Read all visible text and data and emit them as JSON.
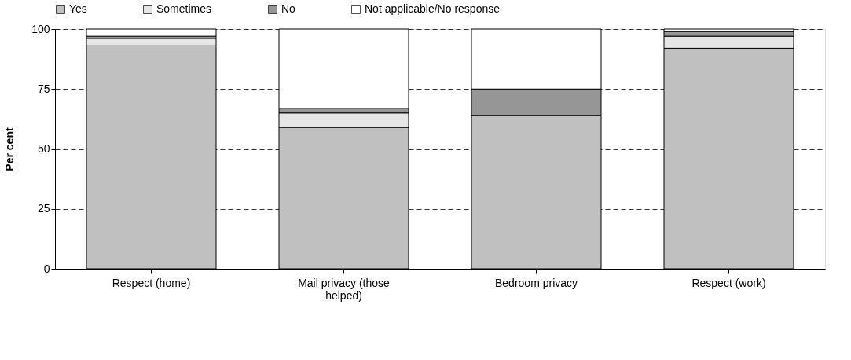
{
  "chart_data": {
    "type": "bar",
    "stacked": true,
    "ylabel": "Per cent",
    "categories": [
      "Respect (home)",
      "Mail privacy (those helped)",
      "Bedroom privacy",
      "Respect (work)"
    ],
    "series": [
      {
        "name": "Yes",
        "color": "#c0c0c0",
        "values": [
          93,
          59,
          64,
          92
        ]
      },
      {
        "name": "Sometimes",
        "color": "#e6e6e6",
        "values": [
          3,
          6,
          0,
          5
        ]
      },
      {
        "name": "No",
        "color": "#969696",
        "values": [
          1,
          2,
          11,
          2
        ]
      },
      {
        "name": "Not applicable/No response",
        "color": "#ffffff",
        "values": [
          3,
          33,
          25,
          1
        ]
      }
    ],
    "ylim": [
      0,
      100
    ],
    "yticks": [
      0,
      25,
      50,
      75,
      100
    ],
    "grid": "y",
    "legend": "top"
  }
}
